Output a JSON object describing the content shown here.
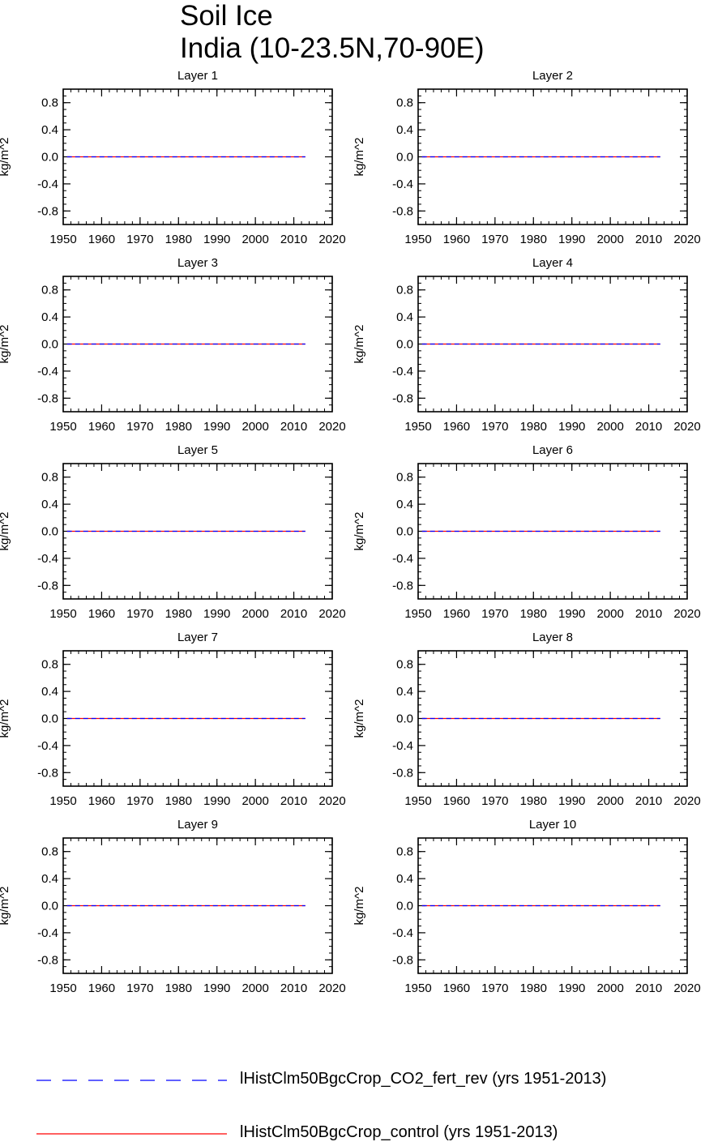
{
  "title": {
    "line1": "Soil Ice",
    "line2": "India (10-23.5N,70-90E)"
  },
  "legend": [
    {
      "label": "lHistClm50BgcCrop_CO2_fert_rev (yrs 1951-2013)",
      "color": "#0000ff",
      "style": "dashed"
    },
    {
      "label": "lHistClm50BgcCrop_control (yrs 1951-2013)",
      "color": "#ff0000",
      "style": "solid"
    }
  ],
  "chart_data": [
    {
      "type": "line",
      "title": "Layer 1",
      "ylabel": "kg/m^2",
      "xlim": [
        1950,
        2020
      ],
      "ylim": [
        -1.0,
        1.0
      ],
      "xticks": [
        "1950",
        "1960",
        "1970",
        "1980",
        "1990",
        "2000",
        "2010",
        "2020"
      ],
      "yticks": [
        "0.8",
        "0.4",
        "0.0",
        "-0.4",
        "-0.8"
      ],
      "series": [
        {
          "name": "lHistClm50BgcCrop_CO2_fert_rev (yrs 1951-2013)",
          "color": "#0000ff",
          "style": "dashed",
          "x": [
            1951,
            2013
          ],
          "y": [
            0,
            0
          ]
        },
        {
          "name": "lHistClm50BgcCrop_control (yrs 1951-2013)",
          "color": "#ff0000",
          "style": "solid",
          "x": [
            1951,
            2013
          ],
          "y": [
            0,
            0
          ]
        }
      ]
    },
    {
      "type": "line",
      "title": "Layer 2",
      "ylabel": "kg/m^2",
      "xlim": [
        1950,
        2020
      ],
      "ylim": [
        -1.0,
        1.0
      ],
      "xticks": [
        "1950",
        "1960",
        "1970",
        "1980",
        "1990",
        "2000",
        "2010",
        "2020"
      ],
      "yticks": [
        "0.8",
        "0.4",
        "0.0",
        "-0.4",
        "-0.8"
      ],
      "series": [
        {
          "name": "lHistClm50BgcCrop_CO2_fert_rev (yrs 1951-2013)",
          "color": "#0000ff",
          "style": "dashed",
          "x": [
            1951,
            2013
          ],
          "y": [
            0,
            0
          ]
        },
        {
          "name": "lHistClm50BgcCrop_control (yrs 1951-2013)",
          "color": "#ff0000",
          "style": "solid",
          "x": [
            1951,
            2013
          ],
          "y": [
            0,
            0
          ]
        }
      ]
    },
    {
      "type": "line",
      "title": "Layer 3",
      "ylabel": "kg/m^2",
      "xlim": [
        1950,
        2020
      ],
      "ylim": [
        -1.0,
        1.0
      ],
      "xticks": [
        "1950",
        "1960",
        "1970",
        "1980",
        "1990",
        "2000",
        "2010",
        "2020"
      ],
      "yticks": [
        "0.8",
        "0.4",
        "0.0",
        "-0.4",
        "-0.8"
      ],
      "series": [
        {
          "name": "lHistClm50BgcCrop_CO2_fert_rev (yrs 1951-2013)",
          "color": "#0000ff",
          "style": "dashed",
          "x": [
            1951,
            2013
          ],
          "y": [
            0,
            0
          ]
        },
        {
          "name": "lHistClm50BgcCrop_control (yrs 1951-2013)",
          "color": "#ff0000",
          "style": "solid",
          "x": [
            1951,
            2013
          ],
          "y": [
            0,
            0
          ]
        }
      ]
    },
    {
      "type": "line",
      "title": "Layer 4",
      "ylabel": "kg/m^2",
      "xlim": [
        1950,
        2020
      ],
      "ylim": [
        -1.0,
        1.0
      ],
      "xticks": [
        "1950",
        "1960",
        "1970",
        "1980",
        "1990",
        "2000",
        "2010",
        "2020"
      ],
      "yticks": [
        "0.8",
        "0.4",
        "0.0",
        "-0.4",
        "-0.8"
      ],
      "series": [
        {
          "name": "lHistClm50BgcCrop_CO2_fert_rev (yrs 1951-2013)",
          "color": "#0000ff",
          "style": "dashed",
          "x": [
            1951,
            2013
          ],
          "y": [
            0,
            0
          ]
        },
        {
          "name": "lHistClm50BgcCrop_control (yrs 1951-2013)",
          "color": "#ff0000",
          "style": "solid",
          "x": [
            1951,
            2013
          ],
          "y": [
            0,
            0
          ]
        }
      ]
    },
    {
      "type": "line",
      "title": "Layer 5",
      "ylabel": "kg/m^2",
      "xlim": [
        1950,
        2020
      ],
      "ylim": [
        -1.0,
        1.0
      ],
      "xticks": [
        "1950",
        "1960",
        "1970",
        "1980",
        "1990",
        "2000",
        "2010",
        "2020"
      ],
      "yticks": [
        "0.8",
        "0.4",
        "0.0",
        "-0.4",
        "-0.8"
      ],
      "series": [
        {
          "name": "lHistClm50BgcCrop_CO2_fert_rev (yrs 1951-2013)",
          "color": "#0000ff",
          "style": "dashed",
          "x": [
            1951,
            2013
          ],
          "y": [
            0,
            0
          ]
        },
        {
          "name": "lHistClm50BgcCrop_control (yrs 1951-2013)",
          "color": "#ff0000",
          "style": "solid",
          "x": [
            1951,
            2013
          ],
          "y": [
            0,
            0
          ]
        }
      ]
    },
    {
      "type": "line",
      "title": "Layer 6",
      "ylabel": "kg/m^2",
      "xlim": [
        1950,
        2020
      ],
      "ylim": [
        -1.0,
        1.0
      ],
      "xticks": [
        "1950",
        "1960",
        "1970",
        "1980",
        "1990",
        "2000",
        "2010",
        "2020"
      ],
      "yticks": [
        "0.8",
        "0.4",
        "0.0",
        "-0.4",
        "-0.8"
      ],
      "series": [
        {
          "name": "lHistClm50BgcCrop_CO2_fert_rev (yrs 1951-2013)",
          "color": "#0000ff",
          "style": "dashed",
          "x": [
            1951,
            2013
          ],
          "y": [
            0,
            0
          ]
        },
        {
          "name": "lHistClm50BgcCrop_control (yrs 1951-2013)",
          "color": "#ff0000",
          "style": "solid",
          "x": [
            1951,
            2013
          ],
          "y": [
            0,
            0
          ]
        }
      ]
    },
    {
      "type": "line",
      "title": "Layer 7",
      "ylabel": "kg/m^2",
      "xlim": [
        1950,
        2020
      ],
      "ylim": [
        -1.0,
        1.0
      ],
      "xticks": [
        "1950",
        "1960",
        "1970",
        "1980",
        "1990",
        "2000",
        "2010",
        "2020"
      ],
      "yticks": [
        "0.8",
        "0.4",
        "0.0",
        "-0.4",
        "-0.8"
      ],
      "series": [
        {
          "name": "lHistClm50BgcCrop_CO2_fert_rev (yrs 1951-2013)",
          "color": "#0000ff",
          "style": "dashed",
          "x": [
            1951,
            2013
          ],
          "y": [
            0,
            0
          ]
        },
        {
          "name": "lHistClm50BgcCrop_control (yrs 1951-2013)",
          "color": "#ff0000",
          "style": "solid",
          "x": [
            1951,
            2013
          ],
          "y": [
            0,
            0
          ]
        }
      ]
    },
    {
      "type": "line",
      "title": "Layer 8",
      "ylabel": "kg/m^2",
      "xlim": [
        1950,
        2020
      ],
      "ylim": [
        -1.0,
        1.0
      ],
      "xticks": [
        "1950",
        "1960",
        "1970",
        "1980",
        "1990",
        "2000",
        "2010",
        "2020"
      ],
      "yticks": [
        "0.8",
        "0.4",
        "0.0",
        "-0.4",
        "-0.8"
      ],
      "series": [
        {
          "name": "lHistClm50BgcCrop_CO2_fert_rev (yrs 1951-2013)",
          "color": "#0000ff",
          "style": "dashed",
          "x": [
            1951,
            2013
          ],
          "y": [
            0,
            0
          ]
        },
        {
          "name": "lHistClm50BgcCrop_control (yrs 1951-2013)",
          "color": "#ff0000",
          "style": "solid",
          "x": [
            1951,
            2013
          ],
          "y": [
            0,
            0
          ]
        }
      ]
    },
    {
      "type": "line",
      "title": "Layer 9",
      "ylabel": "kg/m^2",
      "xlim": [
        1950,
        2020
      ],
      "ylim": [
        -1.0,
        1.0
      ],
      "xticks": [
        "1950",
        "1960",
        "1970",
        "1980",
        "1990",
        "2000",
        "2010",
        "2020"
      ],
      "yticks": [
        "0.8",
        "0.4",
        "0.0",
        "-0.4",
        "-0.8"
      ],
      "series": [
        {
          "name": "lHistClm50BgcCrop_CO2_fert_rev (yrs 1951-2013)",
          "color": "#0000ff",
          "style": "dashed",
          "x": [
            1951,
            2013
          ],
          "y": [
            0,
            0
          ]
        },
        {
          "name": "lHistClm50BgcCrop_control (yrs 1951-2013)",
          "color": "#ff0000",
          "style": "solid",
          "x": [
            1951,
            2013
          ],
          "y": [
            0,
            0
          ]
        }
      ]
    },
    {
      "type": "line",
      "title": "Layer 10",
      "ylabel": "kg/m^2",
      "xlim": [
        1950,
        2020
      ],
      "ylim": [
        -1.0,
        1.0
      ],
      "xticks": [
        "1950",
        "1960",
        "1970",
        "1980",
        "1990",
        "2000",
        "2010",
        "2020"
      ],
      "yticks": [
        "0.8",
        "0.4",
        "0.0",
        "-0.4",
        "-0.8"
      ],
      "series": [
        {
          "name": "lHistClm50BgcCrop_CO2_fert_rev (yrs 1951-2013)",
          "color": "#0000ff",
          "style": "dashed",
          "x": [
            1951,
            2013
          ],
          "y": [
            0,
            0
          ]
        },
        {
          "name": "lHistClm50BgcCrop_control (yrs 1951-2013)",
          "color": "#ff0000",
          "style": "solid",
          "x": [
            1951,
            2013
          ],
          "y": [
            0,
            0
          ]
        }
      ]
    }
  ]
}
